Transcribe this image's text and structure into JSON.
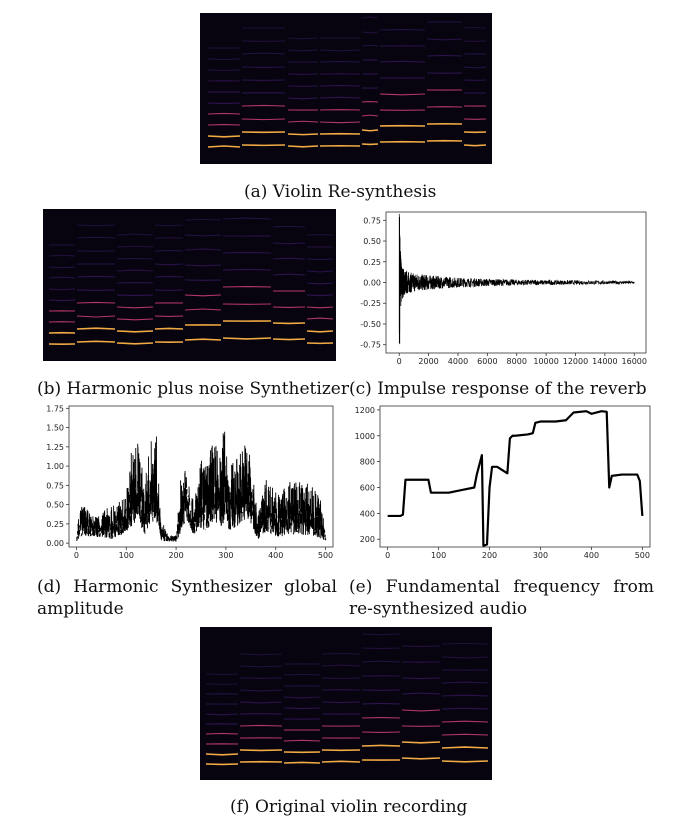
{
  "figure": {
    "captions": {
      "a": "(a) Violin Re-synthesis",
      "b": "(b) Harmonic plus noise Synthetizer",
      "c": "(c) Impulse response of the reverb",
      "d": "(d) Harmonic Synthesizer global amplitude",
      "e": "(e) Fundamental frequency from re-synthesized audio",
      "f": "(f) Original violin recording"
    },
    "colors": {
      "spectrogram_background": "#070410",
      "harmonic_strong": "#ffb347",
      "harmonic_mid": "#e0457b",
      "harmonic_weak": "#6a2fb0",
      "plot_line": "#000000"
    }
  },
  "chart_data": [
    {
      "id": "c",
      "type": "line",
      "title": "",
      "xlabel": "",
      "ylabel": "",
      "xlim": [
        -900,
        16800
      ],
      "ylim": [
        -0.85,
        0.85
      ],
      "xticks": [
        0,
        2000,
        4000,
        6000,
        8000,
        10000,
        12000,
        14000,
        16000
      ],
      "xtick_labels": [
        "0",
        "2000",
        "4000",
        "6000",
        "8000",
        "10000",
        "12000",
        "14000",
        "16000"
      ],
      "yticks": [
        0.75,
        0.5,
        0.25,
        0.0,
        -0.25,
        -0.5,
        -0.75
      ],
      "ytick_labels": [
        "0.75",
        "0.50",
        "0.25",
        "0.00",
        "-0.25",
        "-0.50",
        "-0.75"
      ],
      "series": [
        {
          "description_envelope": "decaying noise",
          "x": [
            0,
            30,
            60,
            100,
            200,
            400,
            800,
            1500,
            2500,
            4000,
            6000,
            8000,
            10000,
            12000,
            14000,
            16000
          ],
          "envelope": [
            0.84,
            0.8,
            0.55,
            0.35,
            0.2,
            0.15,
            0.12,
            0.1,
            0.08,
            0.06,
            0.045,
            0.035,
            0.03,
            0.025,
            0.02,
            0.015
          ]
        }
      ],
      "grid": false
    },
    {
      "id": "d",
      "type": "line",
      "title": "",
      "xlabel": "",
      "ylabel": "",
      "xlim": [
        -15,
        515
      ],
      "ylim": [
        -0.05,
        1.78
      ],
      "xticks": [
        0,
        100,
        200,
        300,
        400,
        500
      ],
      "xtick_labels": [
        "0",
        "100",
        "200",
        "300",
        "400",
        "500"
      ],
      "yticks": [
        0.0,
        0.25,
        0.5,
        0.75,
        1.0,
        1.25,
        1.5,
        1.75
      ],
      "ytick_labels": [
        "0.00",
        "0.25",
        "0.50",
        "0.75",
        "1.00",
        "1.25",
        "1.50",
        "1.75"
      ],
      "series": [
        {
          "x": [
            0,
            5,
            15,
            30,
            50,
            70,
            90,
            100,
            110,
            125,
            135,
            150,
            160,
            170,
            175,
            180,
            185,
            200,
            210,
            220,
            235,
            250,
            260,
            275,
            290,
            298,
            305,
            320,
            335,
            345,
            355,
            365,
            380,
            395,
            410,
            425,
            440,
            455,
            470,
            480,
            490,
            500
          ],
          "upper": [
            0.05,
            0.45,
            0.5,
            0.35,
            0.4,
            0.5,
            0.55,
            0.65,
            1.2,
            1.35,
            0.8,
            1.35,
            1.45,
            0.2,
            0.25,
            0.15,
            0.1,
            0.1,
            0.9,
            1.2,
            0.5,
            1.1,
            1.0,
            1.4,
            1.1,
            1.72,
            1.0,
            1.1,
            1.3,
            1.35,
            0.8,
            0.4,
            0.85,
            0.75,
            0.6,
            0.85,
            0.8,
            0.8,
            0.75,
            0.7,
            0.6,
            0.2
          ],
          "lower": [
            0.02,
            0.05,
            0.1,
            0.08,
            0.08,
            0.05,
            0.1,
            0.15,
            0.2,
            0.3,
            0.1,
            0.25,
            0.3,
            0.02,
            0.02,
            0.02,
            0.02,
            0.02,
            0.15,
            0.3,
            0.1,
            0.2,
            0.15,
            0.3,
            0.2,
            0.3,
            0.15,
            0.2,
            0.3,
            0.3,
            0.15,
            0.05,
            0.15,
            0.1,
            0.08,
            0.12,
            0.1,
            0.1,
            0.1,
            0.08,
            0.05,
            0.02
          ]
        }
      ],
      "grid": false
    },
    {
      "id": "e",
      "type": "line",
      "title": "",
      "xlabel": "",
      "ylabel": "",
      "xlim": [
        -15,
        515
      ],
      "ylim": [
        140,
        1230
      ],
      "xticks": [
        0,
        100,
        200,
        300,
        400,
        500
      ],
      "xtick_labels": [
        "0",
        "100",
        "200",
        "300",
        "400",
        "500"
      ],
      "yticks": [
        200,
        400,
        600,
        800,
        1000,
        1200
      ],
      "ytick_labels": [
        "200",
        "400",
        "600",
        "800",
        "1000",
        "1200"
      ],
      "series": [
        {
          "x": [
            0,
            25,
            30,
            35,
            65,
            80,
            85,
            120,
            145,
            170,
            175,
            185,
            188,
            195,
            200,
            205,
            215,
            235,
            240,
            245,
            250,
            275,
            285,
            290,
            300,
            330,
            350,
            365,
            390,
            400,
            420,
            430,
            435,
            440,
            460,
            490,
            495,
            500
          ],
          "values": [
            380,
            380,
            390,
            660,
            660,
            660,
            560,
            560,
            580,
            600,
            700,
            850,
            150,
            160,
            600,
            760,
            760,
            710,
            980,
            1000,
            1000,
            1010,
            1020,
            1100,
            1110,
            1110,
            1120,
            1180,
            1190,
            1170,
            1190,
            1185,
            600,
            690,
            700,
            700,
            650,
            380
          ]
        }
      ],
      "grid": false
    }
  ]
}
